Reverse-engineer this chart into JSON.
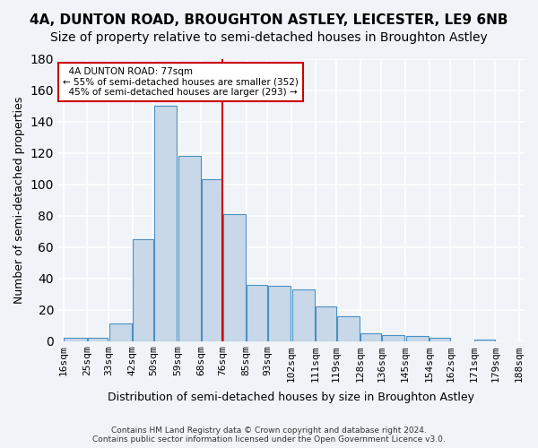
{
  "title1": "4A, DUNTON ROAD, BROUGHTON ASTLEY, LEICESTER, LE9 6NB",
  "title2": "Size of property relative to semi-detached houses in Broughton Astley",
  "xlabel": "Distribution of semi-detached houses by size in Broughton Astley",
  "ylabel": "Number of semi-detached properties",
  "footnote": "Contains HM Land Registry data © Crown copyright and database right 2024.\nContains public sector information licensed under the Open Government Licence v3.0.",
  "categories": [
    "16sqm",
    "25sqm",
    "33sqm",
    "42sqm",
    "50sqm",
    "59sqm",
    "68sqm",
    "76sqm",
    "85sqm",
    "93sqm",
    "102sqm",
    "111sqm",
    "119sqm",
    "128sqm",
    "136sqm",
    "145sqm",
    "154sqm",
    "162sqm",
    "171sqm",
    "179sqm",
    "188sqm"
  ],
  "values": [
    2,
    2,
    11,
    65,
    150,
    118,
    103,
    81,
    36,
    35,
    33,
    22,
    16,
    5,
    4,
    3,
    2,
    0,
    1,
    0
  ],
  "bar_color": "#c8d8e8",
  "bar_edge_color": "#4a90c4",
  "property_line_x": 76,
  "property_size": "77sqm",
  "pct_smaller": 55,
  "pct_larger": 45,
  "n_smaller": 352,
  "n_larger": 293,
  "annotation_label": "4A DUNTON ROAD: 77sqm",
  "vline_color": "#cc0000",
  "box_edge_color": "#cc0000",
  "ylim": [
    0,
    180
  ],
  "yticks": [
    0,
    20,
    40,
    60,
    80,
    100,
    120,
    140,
    160,
    180
  ],
  "background_color": "#f0f4f8",
  "plot_background": "#f0f4f8",
  "grid_color": "#ffffff",
  "title_fontsize": 11,
  "subtitle_fontsize": 10,
  "tick_fontsize": 8,
  "ylabel_fontsize": 9,
  "xlabel_fontsize": 9
}
